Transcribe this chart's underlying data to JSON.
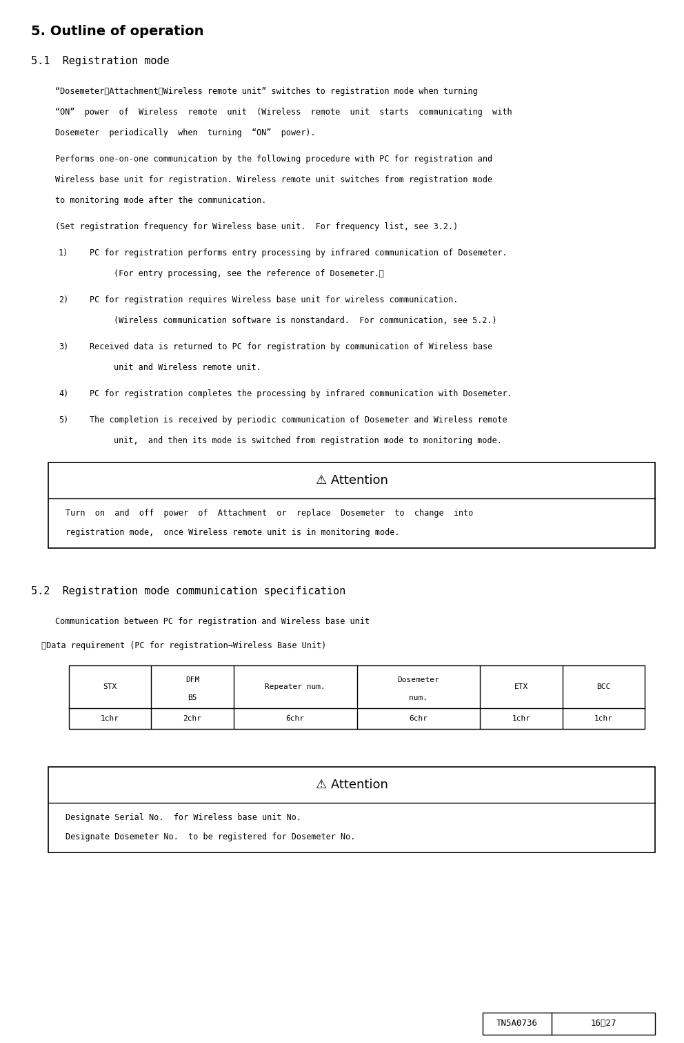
{
  "title": "5. Outline of operation",
  "section51_title": "5.1  Registration mode",
  "para1_line1": "“Dosemeter＋Attachment＋Wireless remote unit” switches to registration mode when turning",
  "para1_line2": "“ON”  power  of  Wireless  remote  unit  (Wireless  remote  unit  starts  communicating  with",
  "para1_line3": "Dosemeter  periodically  when  turning  “ON”  power).",
  "para2_line1": "Performs one-on-one communication by the following procedure with PC for registration and",
  "para2_line2": "Wireless base unit for registration. Wireless remote unit switches from registration mode",
  "para2_line3": "to monitoring mode after the communication.",
  "para3_line1": "(Set registration frequency for Wireless base unit.  For frequency list, see 3.2.)",
  "list_items": [
    {
      "num": "1)",
      "line1": "PC for registration performs entry processing by infrared communication of Dosemeter.",
      "line2": "(For entry processing, see the reference of Dosemeter.）"
    },
    {
      "num": "2)",
      "line1": "PC for registration requires Wireless base unit for wireless communication.",
      "line2": "(Wireless communication software is nonstandard.  For communication, see 5.2.)"
    },
    {
      "num": "3)",
      "line1": "Received data is returned to PC for registration by communication of Wireless base",
      "line2": "unit and Wireless remote unit."
    },
    {
      "num": "4)",
      "line1": "PC for registration completes the processing by infrared communication with Dosemeter."
    },
    {
      "num": "5)",
      "line1": "The completion is received by periodic communication of Dosemeter and Wireless remote",
      "line2": "unit,  and then its mode is switched from registration mode to monitoring mode."
    }
  ],
  "attention1_title": "⚠ Attention",
  "attention1_body_line1": "Turn  on  and  off  power  of  Attachment  or  replace  Dosemeter  to  change  into",
  "attention1_body_line2": "registration mode,  once Wireless remote unit is in monitoring mode.",
  "section52_title": "5.2  Registration mode communication specification",
  "comm_label": "Communication between PC for registration and Wireless base unit",
  "data_req_label": "・Data requirement (PC for registration→Wireless Base Unit)",
  "table_headers": [
    "STX",
    "DFM\nB5",
    "Repeater num.",
    "Dosemeter\nnum.",
    "ETX",
    "BCC"
  ],
  "table_values": [
    "1chr",
    "2chr",
    "6chr",
    "6chr",
    "1chr",
    "1chr"
  ],
  "attention2_title": "⚠ Attention",
  "attention2_body_line1": "Designate Serial No.  for Wireless base unit No.",
  "attention2_body_line2": "Designate Dosemeter No.  to be registered for Dosemeter No.",
  "footer_left": "TN5A0736",
  "footer_right": "16／27",
  "bg_color": "#ffffff",
  "text_color": "#000000",
  "box_border_color": "#000000"
}
